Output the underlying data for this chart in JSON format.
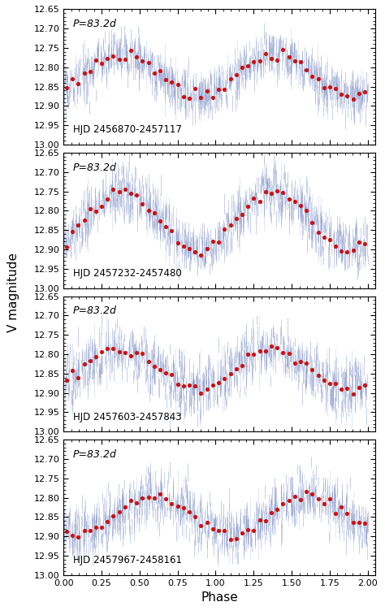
{
  "panels": [
    {
      "hjd_label": "HJD 2456870-2457117",
      "period_label": "P=83.2d",
      "amp": 0.055,
      "phase_shift": 0.38,
      "baseline": 12.82,
      "noise_fine": 0.025,
      "noise_bin": 0.008
    },
    {
      "hjd_label": "HJD 2457232-2457480",
      "period_label": "P=83.2d",
      "amp": 0.075,
      "phase_shift": 0.38,
      "baseline": 12.825,
      "noise_fine": 0.028,
      "noise_bin": 0.008
    },
    {
      "hjd_label": "HJD 2457603-2457843",
      "period_label": "P=83.2d",
      "amp": 0.05,
      "phase_shift": 0.37,
      "baseline": 12.84,
      "noise_fine": 0.032,
      "noise_bin": 0.008
    },
    {
      "hjd_label": "HJD 2457967-2458161",
      "period_label": "P=83.2d",
      "amp": 0.048,
      "phase_shift": 0.6,
      "baseline": 12.845,
      "noise_fine": 0.03,
      "noise_bin": 0.008
    }
  ],
  "xlim": [
    0.0,
    2.05
  ],
  "ylim": [
    13.0,
    12.65
  ],
  "xticks": [
    0.0,
    0.25,
    0.5,
    0.75,
    1.0,
    1.25,
    1.5,
    1.75,
    2.0
  ],
  "yticks": [
    12.65,
    12.7,
    12.75,
    12.8,
    12.85,
    12.9,
    12.95,
    13.0
  ],
  "xlabel": "Phase",
  "ylabel": "V magnitude",
  "bg": "#ffffff",
  "fine_color": "#8899cc",
  "bin_color": "#cc1111",
  "panel_label_fs": 9,
  "axis_fs": 10,
  "tick_fs": 8,
  "n_fine": 400,
  "n_bins": 26,
  "n_spikes": 400
}
